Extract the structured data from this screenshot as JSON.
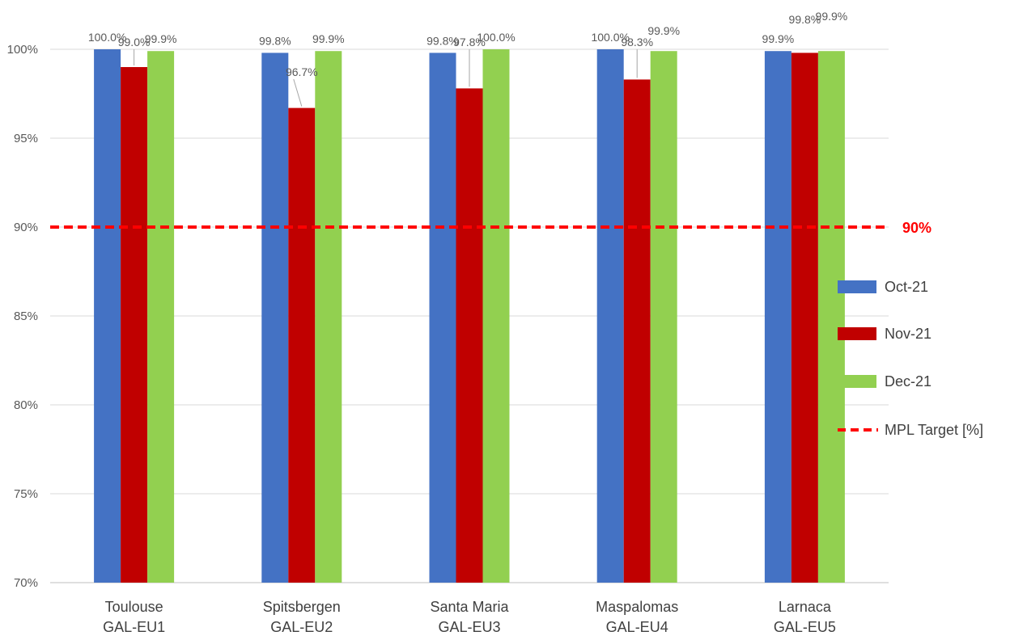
{
  "chart_data": {
    "type": "bar",
    "categories": [
      [
        "Toulouse",
        "GAL-EU1"
      ],
      [
        "Spitsbergen",
        "GAL-EU2"
      ],
      [
        "Santa Maria",
        "GAL-EU3"
      ],
      [
        "Maspalomas",
        "GAL-EU4"
      ],
      [
        "Larnaca",
        "GAL-EU5"
      ]
    ],
    "series": [
      {
        "name": "Oct-21",
        "color": "#4472C4",
        "values": [
          100.0,
          99.8,
          99.8,
          100.0,
          99.9
        ],
        "labels": [
          "100.0%",
          "99.8%",
          "99.8%",
          "100.0%",
          "99.9%"
        ]
      },
      {
        "name": "Nov-21",
        "color": "#C00000",
        "values": [
          99.0,
          96.7,
          97.8,
          98.3,
          99.8
        ],
        "labels": [
          "99.0%",
          "96.7%",
          "97.8%",
          "98.3%",
          "99.8%"
        ]
      },
      {
        "name": "Dec-21",
        "color": "#92D050",
        "values": [
          99.9,
          99.9,
          100.0,
          99.9,
          99.9
        ],
        "labels": [
          "99.9%",
          "99.9%",
          "100.0%",
          "99.9%",
          "99.9%"
        ]
      }
    ],
    "target": {
      "name": "MPL Target [%]",
      "value": 90,
      "label": "90%",
      "color": "#FF0000"
    },
    "ylim": [
      70,
      100
    ],
    "yticks": [
      {
        "value": 70,
        "label": "70%"
      },
      {
        "value": 75,
        "label": "75%"
      },
      {
        "value": 80,
        "label": "80%"
      },
      {
        "value": 85,
        "label": "85%"
      },
      {
        "value": 90,
        "label": "90%"
      },
      {
        "value": 95,
        "label": "95%"
      },
      {
        "value": 100,
        "label": "100%"
      }
    ],
    "title": "",
    "xlabel": "",
    "ylabel": "",
    "grid": true,
    "legend_position": "right"
  }
}
